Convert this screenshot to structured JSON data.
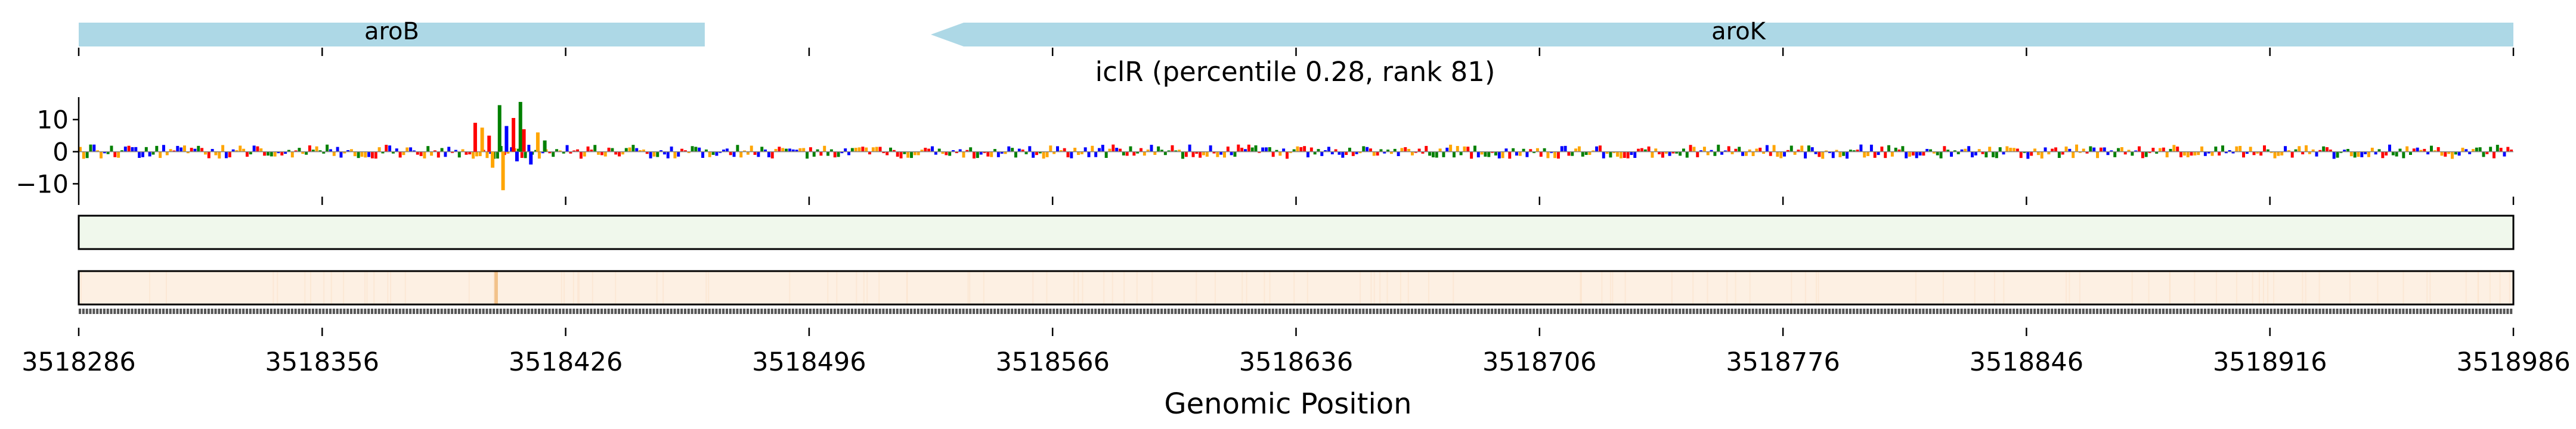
{
  "chart_data": [
    {
      "type": "gene-track",
      "genes": [
        {
          "name": "aroB",
          "start": 3518286,
          "end": 3518466,
          "strand": "+"
        },
        {
          "name": "aroK",
          "start": 3518531,
          "end": 3518986,
          "strand": "-"
        }
      ],
      "gene_color": "#add8e6",
      "xlim": [
        3518286,
        3518986
      ]
    },
    {
      "type": "sequence-logo",
      "title": "iclR (percentile 0.28, rank 81)",
      "ylim": [
        -14,
        17
      ],
      "yticks": [
        10,
        0,
        -10
      ],
      "ytick_labels": [
        "10",
        "0",
        "−10"
      ],
      "xlim": [
        3518286,
        3518986
      ],
      "peaks": [
        {
          "x": 3518400,
          "y": 9
        },
        {
          "x": 3518402,
          "y": 7.5
        },
        {
          "x": 3518404,
          "y": 5
        },
        {
          "x": 3518405,
          "y": -5
        },
        {
          "x": 3518407,
          "y": 14.5
        },
        {
          "x": 3518408,
          "y": -12
        },
        {
          "x": 3518409,
          "y": 8
        },
        {
          "x": 3518411,
          "y": 10.5
        },
        {
          "x": 3518412,
          "y": -3
        },
        {
          "x": 3518413,
          "y": 15.5
        },
        {
          "x": 3518414,
          "y": 7
        },
        {
          "x": 3518416,
          "y": -4
        },
        {
          "x": 3518418,
          "y": 6
        },
        {
          "x": 3518420,
          "y": 3.5
        }
      ],
      "base_colors": {
        "A": "#008000",
        "C": "#0000ff",
        "G": "#ffa500",
        "T": "#ff0000"
      }
    },
    {
      "type": "heatmap",
      "name": "green-track",
      "color": "#f0f8ec",
      "xlim": [
        3518286,
        3518986
      ]
    },
    {
      "type": "heatmap",
      "name": "orange-track",
      "color": "#fdf0e3",
      "highlight_color": "#f2c28a",
      "highlights": [
        {
          "x": 3518406,
          "intensity": 1.0
        }
      ],
      "xlim": [
        3518286,
        3518986
      ]
    },
    {
      "type": "axis",
      "xlabel": "Genomic Position",
      "xticks": [
        3518286,
        3518356,
        3518426,
        3518496,
        3518566,
        3518636,
        3518706,
        3518776,
        3518846,
        3518916,
        3518986
      ],
      "xtick_labels": [
        "3518286",
        "3518356",
        "3518426",
        "3518496",
        "3518566",
        "3518636",
        "3518706",
        "3518776",
        "3518846",
        "3518916",
        "3518986"
      ],
      "xlim": [
        3518286,
        3518986
      ]
    }
  ]
}
